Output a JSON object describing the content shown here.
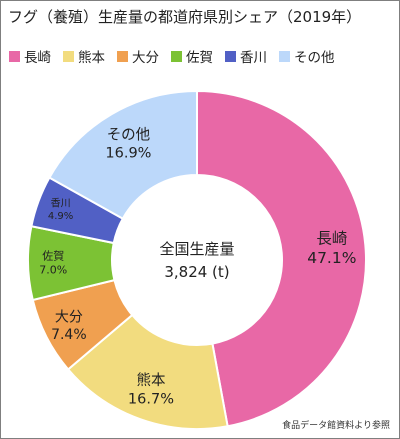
{
  "title": "フグ（養殖）生産量の都道府県別シェア（2019年）",
  "source": "食品データ館資料より参照",
  "center": {
    "label": "全国生産量",
    "value": "3,824 (t)"
  },
  "chart_data": {
    "type": "pie",
    "subtype": "donut",
    "legend_position": "top",
    "categories": [
      "長崎",
      "熊本",
      "大分",
      "佐賀",
      "香川",
      "その他"
    ],
    "values": [
      47.1,
      16.7,
      7.4,
      7.0,
      4.9,
      16.9
    ],
    "value_labels": [
      "47.1%",
      "16.7%",
      "7.4%",
      "7.0%",
      "4.9%",
      "16.9%"
    ],
    "colors": [
      "#e868a6",
      "#f2dc7f",
      "#f0a050",
      "#7cc234",
      "#5160c5",
      "#bcd8fa"
    ]
  }
}
